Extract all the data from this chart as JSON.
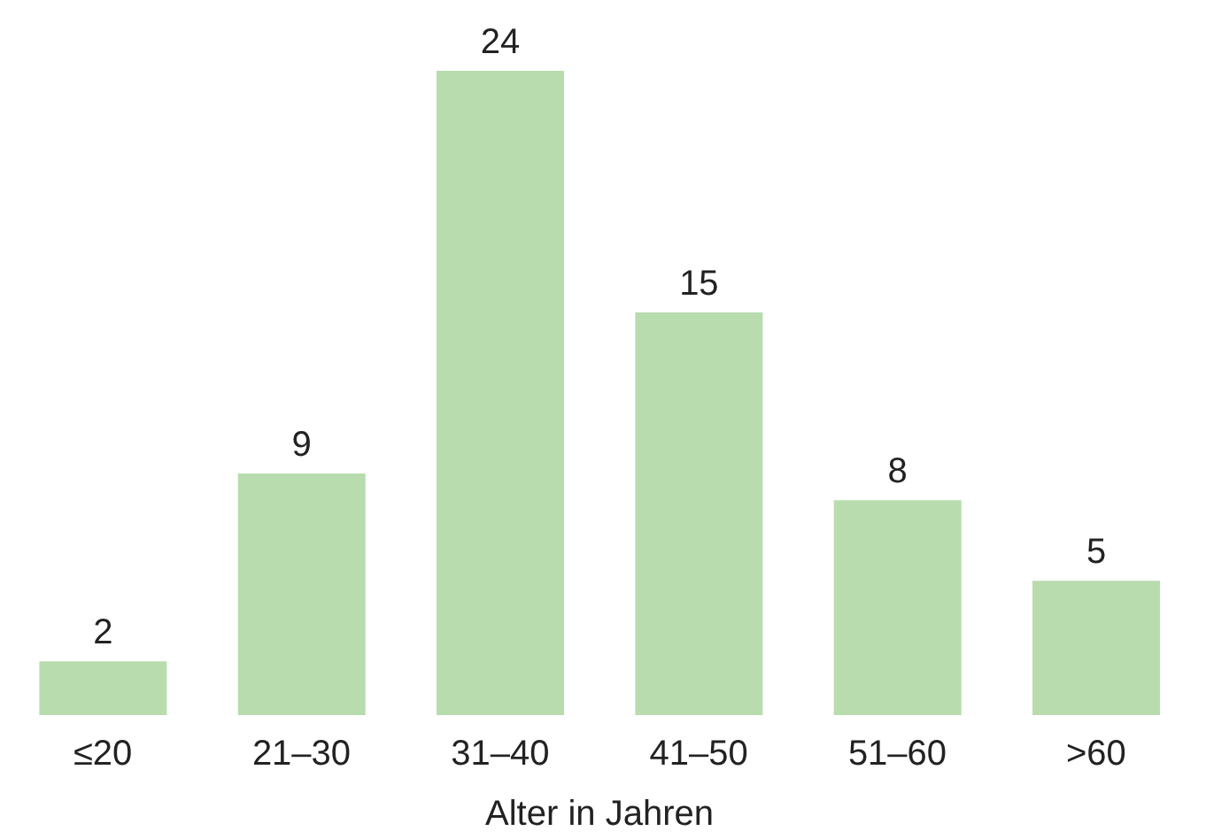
{
  "chart_data": {
    "type": "bar",
    "xlabel": "Alter in Jahren",
    "categories": [
      "≤20",
      "21–30",
      "31–40",
      "41–50",
      "51–60",
      ">60"
    ],
    "values": [
      2,
      9,
      24,
      15,
      8,
      5
    ],
    "color": "#b8dcad",
    "data_labels": true
  }
}
